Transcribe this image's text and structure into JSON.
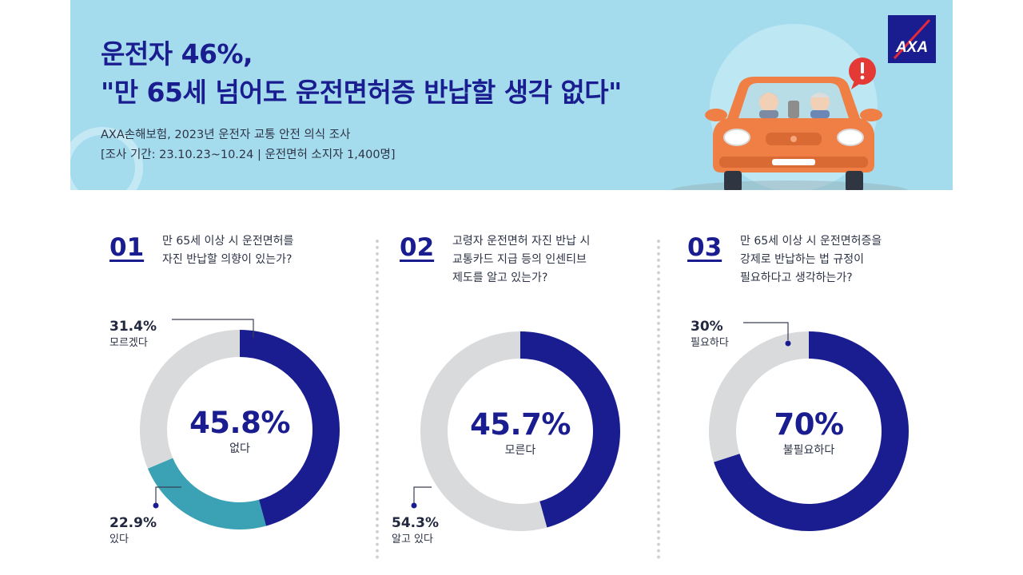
{
  "header": {
    "title_line1": "운전자 46%,",
    "title_line2": "\"만 65세 넘어도 운전면허증 반납할 생각 없다\"",
    "subtitle_line1": "AXA손해보험, 2023년 운전자 교통 안전 의식 조사",
    "subtitle_line2": "[조사 기간: 23.10.23~10.24 | 운전면허 소지자 1,400명]",
    "logo_text": "AXA",
    "colors": {
      "background": "#a5dced",
      "title": "#1a1d8f",
      "car": "#ef7f45",
      "alert": "#e53935"
    }
  },
  "colors": {
    "primary": "#1a1d8f",
    "teal": "#3aa2b4",
    "grey": "#d9dadc"
  },
  "panels": [
    {
      "number": "01",
      "question": [
        "만 65세 이상 시 운전면허를",
        "자진 반납할 의향이 있는가?"
      ],
      "center_value": "45.8%",
      "center_label": "없다",
      "top_value": "31.4%",
      "top_label": "모르겠다",
      "bottom_value": "22.9%",
      "bottom_label": "있다"
    },
    {
      "number": "02",
      "question": [
        "고령자 운전면허 자진 반납 시",
        "교통카드 지급 등의 인센티브",
        "제도를 알고 있는가?"
      ],
      "center_value": "45.7%",
      "center_label": "모른다",
      "bottom_value": "54.3%",
      "bottom_label": "알고 있다"
    },
    {
      "number": "03",
      "question": [
        "만 65세 이상 시 운전면허증을",
        "강제로 반납하는 법 규정이",
        "필요하다고 생각하는가?"
      ],
      "center_value": "70%",
      "center_label": "불필요하다",
      "top_value": "30%",
      "top_label": "필요하다"
    }
  ],
  "chart_data": [
    {
      "type": "pie",
      "categories": [
        "없다",
        "있다",
        "모르겠다"
      ],
      "values": [
        45.8,
        22.9,
        31.4
      ],
      "colors": [
        "#1a1d8f",
        "#3aa2b4",
        "#d9dadc"
      ],
      "title": "만 65세 이상 시 운전면허를 자진 반납할 의향이 있는가?"
    },
    {
      "type": "pie",
      "categories": [
        "모른다",
        "알고 있다"
      ],
      "values": [
        45.7,
        54.3
      ],
      "colors": [
        "#1a1d8f",
        "#d9dadc"
      ],
      "title": "고령자 운전면허 자진 반납 시 교통카드 지급 등의 인센티브 제도를 알고 있는가?"
    },
    {
      "type": "pie",
      "categories": [
        "불필요하다",
        "필요하다"
      ],
      "values": [
        70,
        30
      ],
      "colors": [
        "#1a1d8f",
        "#d9dadc"
      ],
      "title": "만 65세 이상 시 운전면허증을 강제로 반납하는 법 규정이 필요하다고 생각하는가?"
    }
  ]
}
